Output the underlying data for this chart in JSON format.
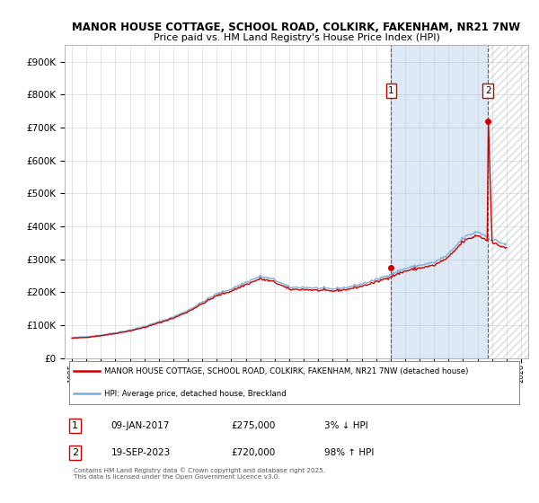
{
  "title_line1": "MANOR HOUSE COTTAGE, SCHOOL ROAD, COLKIRK, FAKENHAM, NR21 7NW",
  "title_line2": "Price paid vs. HM Land Registry's House Price Index (HPI)",
  "ylabel_ticks": [
    "£0",
    "£100K",
    "£200K",
    "£300K",
    "£400K",
    "£500K",
    "£600K",
    "£700K",
    "£800K",
    "£900K"
  ],
  "ytick_values": [
    0,
    100000,
    200000,
    300000,
    400000,
    500000,
    600000,
    700000,
    800000,
    900000
  ],
  "ylim": [
    0,
    950000
  ],
  "xlim_start": 1994.5,
  "xlim_end": 2026.5,
  "hpi_color": "#7bafd4",
  "price_color": "#cc0000",
  "background_color": "#dce8f5",
  "future_hatch_color": "#aaaaaa",
  "grid_color": "#b0bec5",
  "legend_line1": "MANOR HOUSE COTTAGE, SCHOOL ROAD, COLKIRK, FAKENHAM, NR21 7NW (detached house)",
  "legend_line2": "HPI: Average price, detached house, Breckland",
  "sale1_label": "1",
  "sale1_date": "09-JAN-2017",
  "sale1_price": "£275,000",
  "sale1_pct": "3% ↓ HPI",
  "sale1_year": 2017.04,
  "sale1_value": 275000,
  "sale2_label": "2",
  "sale2_date": "19-SEP-2023",
  "sale2_price": "£720,000",
  "sale2_pct": "98% ↑ HPI",
  "sale2_year": 2023.72,
  "sale2_value": 720000,
  "footer": "Contains HM Land Registry data © Crown copyright and database right 2025.\nThis data is licensed under the Open Government Licence v3.0."
}
